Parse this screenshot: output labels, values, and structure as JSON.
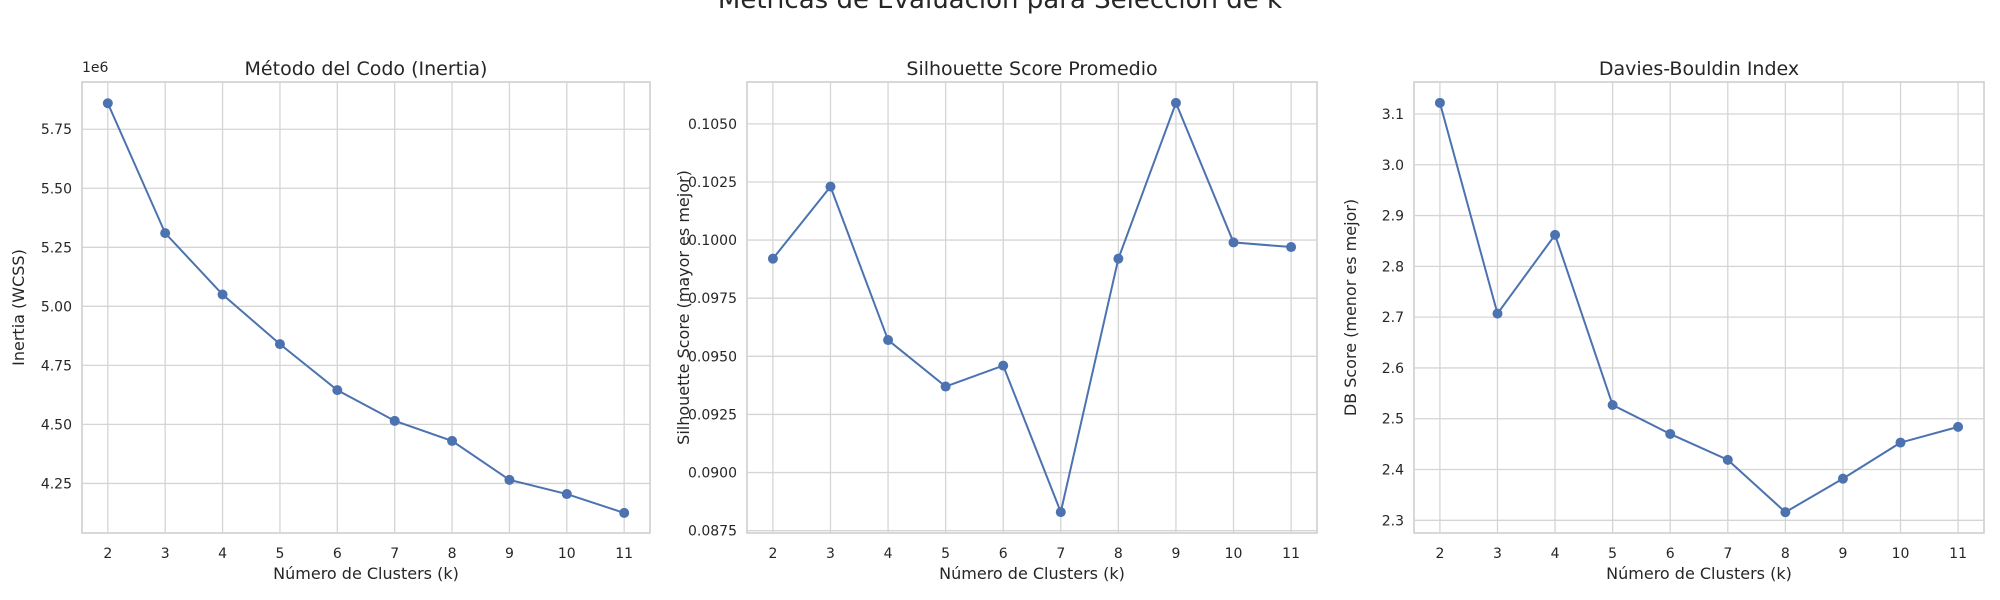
{
  "figure": {
    "suptitle": "Métricas de Evaluación para Selección de k"
  },
  "chart_data": [
    {
      "type": "line",
      "title": "Método del Codo (Inertia)",
      "xlabel": "Número de Clusters (k)",
      "ylabel": "Inertia (WCSS)",
      "offset_label": "1e6",
      "x": [
        2,
        3,
        4,
        5,
        6,
        7,
        8,
        9,
        10,
        11
      ],
      "y": [
        5.86,
        5.31,
        5.05,
        4.84,
        4.645,
        4.515,
        4.43,
        4.265,
        4.205,
        4.125
      ],
      "xticks": [
        "2",
        "3",
        "4",
        "5",
        "6",
        "7",
        "8",
        "9",
        "10",
        "11"
      ],
      "yticks": [
        "4.25",
        "4.50",
        "4.75",
        "5.00",
        "5.25",
        "5.50",
        "5.75"
      ],
      "ytick_values": [
        4.25,
        4.5,
        4.75,
        5.0,
        5.25,
        5.5,
        5.75
      ],
      "xlim": [
        1.55,
        11.45
      ],
      "ylim": [
        4.04,
        5.95
      ],
      "grid": true,
      "color": "#4c72b0"
    },
    {
      "type": "line",
      "title": "Silhouette Score Promedio",
      "xlabel": "Número de Clusters (k)",
      "ylabel": "Silhouette Score (mayor es mejor)",
      "x": [
        2,
        3,
        4,
        5,
        6,
        7,
        8,
        9,
        10,
        11
      ],
      "y": [
        0.0992,
        0.1023,
        0.0957,
        0.0937,
        0.0946,
        0.0883,
        0.0992,
        0.1059,
        0.0999,
        0.0997
      ],
      "xticks": [
        "2",
        "3",
        "4",
        "5",
        "6",
        "7",
        "8",
        "9",
        "10",
        "11"
      ],
      "yticks": [
        "0.0875",
        "0.0900",
        "0.0925",
        "0.0950",
        "0.0975",
        "0.1000",
        "0.1025",
        "0.1050"
      ],
      "ytick_values": [
        0.0875,
        0.09,
        0.0925,
        0.095,
        0.0975,
        0.1,
        0.1025,
        0.105
      ],
      "xlim": [
        1.55,
        11.45
      ],
      "ylim": [
        0.0874,
        0.1068
      ],
      "grid": true,
      "color": "#4c72b0"
    },
    {
      "type": "line",
      "title": "Davies-Bouldin Index",
      "xlabel": "Número de Clusters (k)",
      "ylabel": "DB Score (menor es mejor)",
      "x": [
        2,
        3,
        4,
        5,
        6,
        7,
        8,
        9,
        10,
        11
      ],
      "y": [
        3.122,
        2.707,
        2.862,
        2.527,
        2.47,
        2.419,
        2.316,
        2.382,
        2.453,
        2.484
      ],
      "xticks": [
        "2",
        "3",
        "4",
        "5",
        "6",
        "7",
        "8",
        "9",
        "10",
        "11"
      ],
      "yticks": [
        "2.3",
        "2.4",
        "2.5",
        "2.6",
        "2.7",
        "2.8",
        "2.9",
        "3.0",
        "3.1"
      ],
      "ytick_values": [
        2.3,
        2.4,
        2.5,
        2.6,
        2.7,
        2.8,
        2.9,
        3.0,
        3.1
      ],
      "xlim": [
        1.55,
        11.45
      ],
      "ylim": [
        2.275,
        3.163
      ],
      "grid": true,
      "color": "#4c72b0"
    }
  ]
}
